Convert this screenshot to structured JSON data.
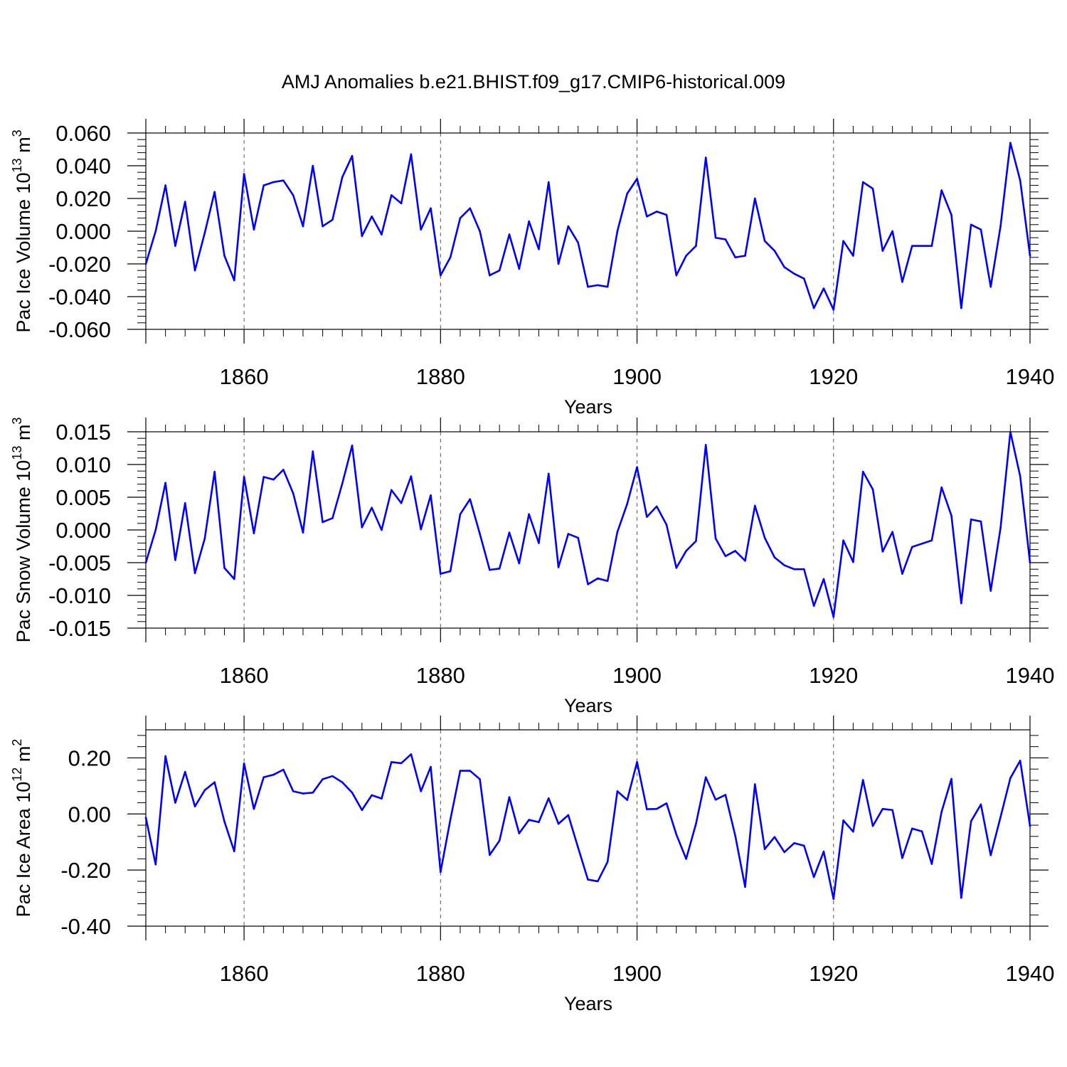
{
  "title": "AMJ Anomalies b.e21.BHIST.f09_g17.CMIP6-historical.009",
  "line_color": "#0000ff",
  "chart_data": [
    {
      "type": "line",
      "name": "ice-volume",
      "ylabel": "Pac Ice Volume 10",
      "ylabel_exp": "13",
      "ylabel_unit": " m",
      "ylabel_unit_exp": "3",
      "xlabel": "Years",
      "xlim": [
        1850,
        1940
      ],
      "ylim": [
        -0.06,
        0.06
      ],
      "xticks": [
        1860,
        1880,
        1900,
        1920,
        1940
      ],
      "xtick_labels": [
        "1860",
        "1880",
        "1900",
        "1920",
        "1940"
      ],
      "yticks": [
        -0.06,
        -0.04,
        -0.02,
        0.0,
        0.02,
        0.04,
        0.06
      ],
      "ytick_labels": [
        "-0.060",
        "-0.040",
        "-0.020",
        "0.000",
        "0.020",
        "0.040",
        "0.060"
      ],
      "x_start": 1850,
      "values": [
        -0.02,
        0.0,
        0.028,
        -0.009,
        0.018,
        -0.024,
        -0.001,
        0.024,
        -0.015,
        -0.03,
        0.035,
        0.001,
        0.028,
        0.03,
        0.031,
        0.022,
        0.003,
        0.04,
        0.003,
        0.007,
        0.033,
        0.046,
        -0.003,
        0.009,
        -0.002,
        0.022,
        0.017,
        0.047,
        0.001,
        0.014,
        -0.027,
        -0.016,
        0.008,
        0.014,
        0.0,
        -0.027,
        -0.024,
        -0.002,
        -0.023,
        0.006,
        -0.011,
        0.03,
        -0.02,
        0.003,
        -0.007,
        -0.034,
        -0.033,
        -0.034,
        0.0,
        0.023,
        0.032,
        0.009,
        0.012,
        0.01,
        -0.027,
        -0.015,
        -0.009,
        0.045,
        -0.004,
        -0.005,
        -0.016,
        -0.015,
        0.02,
        -0.006,
        -0.012,
        -0.022,
        -0.026,
        -0.029,
        -0.047,
        -0.035,
        -0.048,
        -0.006,
        -0.015,
        0.03,
        0.026,
        -0.012,
        0.0,
        -0.031,
        -0.009,
        -0.009,
        -0.009,
        0.025,
        0.01,
        -0.047,
        0.004,
        0.001,
        -0.034,
        0.003,
        0.054,
        0.031,
        -0.015
      ]
    },
    {
      "type": "line",
      "name": "snow-volume",
      "ylabel": "Pac Snow Volume 10",
      "ylabel_exp": "13",
      "ylabel_unit": " m",
      "ylabel_unit_exp": "3",
      "xlabel": "Years",
      "xlim": [
        1850,
        1940
      ],
      "ylim": [
        -0.015,
        0.015
      ],
      "xticks": [
        1860,
        1880,
        1900,
        1920,
        1940
      ],
      "xtick_labels": [
        "1860",
        "1880",
        "1900",
        "1920",
        "1940"
      ],
      "yticks": [
        -0.015,
        -0.01,
        -0.005,
        0.0,
        0.005,
        0.01,
        0.015
      ],
      "ytick_labels": [
        "-0.015",
        "-0.010",
        "-0.005",
        "0.000",
        "0.005",
        "0.010",
        "0.015"
      ],
      "x_start": 1850,
      "values": [
        -0.005,
        0.0,
        0.0072,
        -0.0046,
        0.0041,
        -0.0066,
        -0.0013,
        0.0089,
        -0.0058,
        -0.0075,
        0.0081,
        -0.0005,
        0.0081,
        0.0077,
        0.0092,
        0.0056,
        -0.0004,
        0.012,
        0.0012,
        0.0018,
        0.0071,
        0.0129,
        0.0004,
        0.0034,
        0.0,
        0.0061,
        0.0041,
        0.0082,
        0.0001,
        0.0053,
        -0.0067,
        -0.0063,
        0.0024,
        0.0047,
        -0.0006,
        -0.0061,
        -0.0059,
        -0.0004,
        -0.0051,
        0.0024,
        -0.002,
        0.0086,
        -0.0057,
        -0.0006,
        -0.0012,
        -0.0083,
        -0.0074,
        -0.0078,
        -0.0003,
        0.004,
        0.0096,
        0.002,
        0.0036,
        0.0008,
        -0.0058,
        -0.0032,
        -0.0017,
        0.013,
        -0.0013,
        -0.004,
        -0.0032,
        -0.0047,
        0.0037,
        -0.0012,
        -0.0042,
        -0.0054,
        -0.006,
        -0.006,
        -0.0116,
        -0.0075,
        -0.0133,
        -0.0016,
        -0.0049,
        0.0089,
        0.0062,
        -0.0033,
        -0.0003,
        -0.0067,
        -0.0026,
        -0.0021,
        -0.0016,
        0.0065,
        0.0022,
        -0.0112,
        0.0016,
        0.0013,
        -0.0093,
        0.0003,
        0.015,
        0.0082,
        -0.005
      ]
    },
    {
      "type": "line",
      "name": "ice-area",
      "ylabel": "Pac Ice Area 10",
      "ylabel_exp": "12",
      "ylabel_unit": " m",
      "ylabel_unit_exp": "2",
      "xlabel": "Years",
      "xlim": [
        1850,
        1940
      ],
      "ylim": [
        -0.4,
        0.3
      ],
      "xticks": [
        1860,
        1880,
        1900,
        1920,
        1940
      ],
      "xtick_labels": [
        "1860",
        "1880",
        "1900",
        "1920",
        "1940"
      ],
      "yticks": [
        -0.4,
        -0.2,
        0.0,
        0.2
      ],
      "ytick_labels": [
        "-0.40",
        "-0.20",
        "0.00",
        "0.20"
      ],
      "x_start": 1850,
      "values": [
        -0.013,
        -0.18,
        0.206,
        0.04,
        0.15,
        0.027,
        0.085,
        0.113,
        -0.027,
        -0.133,
        0.18,
        0.018,
        0.131,
        0.14,
        0.158,
        0.081,
        0.073,
        0.076,
        0.124,
        0.135,
        0.113,
        0.076,
        0.014,
        0.067,
        0.055,
        0.185,
        0.181,
        0.213,
        0.081,
        0.168,
        -0.207,
        -0.02,
        0.154,
        0.154,
        0.124,
        -0.146,
        -0.095,
        0.06,
        -0.069,
        -0.021,
        -0.029,
        0.056,
        -0.035,
        -0.004,
        -0.12,
        -0.234,
        -0.24,
        -0.171,
        0.081,
        0.05,
        0.185,
        0.017,
        0.018,
        0.038,
        -0.073,
        -0.16,
        -0.035,
        0.131,
        0.051,
        0.068,
        -0.078,
        -0.26,
        0.106,
        -0.125,
        -0.082,
        -0.136,
        -0.104,
        -0.113,
        -0.225,
        -0.134,
        -0.303,
        -0.023,
        -0.063,
        0.121,
        -0.043,
        0.018,
        0.014,
        -0.157,
        -0.052,
        -0.062,
        -0.178,
        0.008,
        0.125,
        -0.299,
        -0.026,
        0.034,
        -0.147,
        -0.011,
        0.128,
        0.19,
        -0.043
      ]
    }
  ]
}
